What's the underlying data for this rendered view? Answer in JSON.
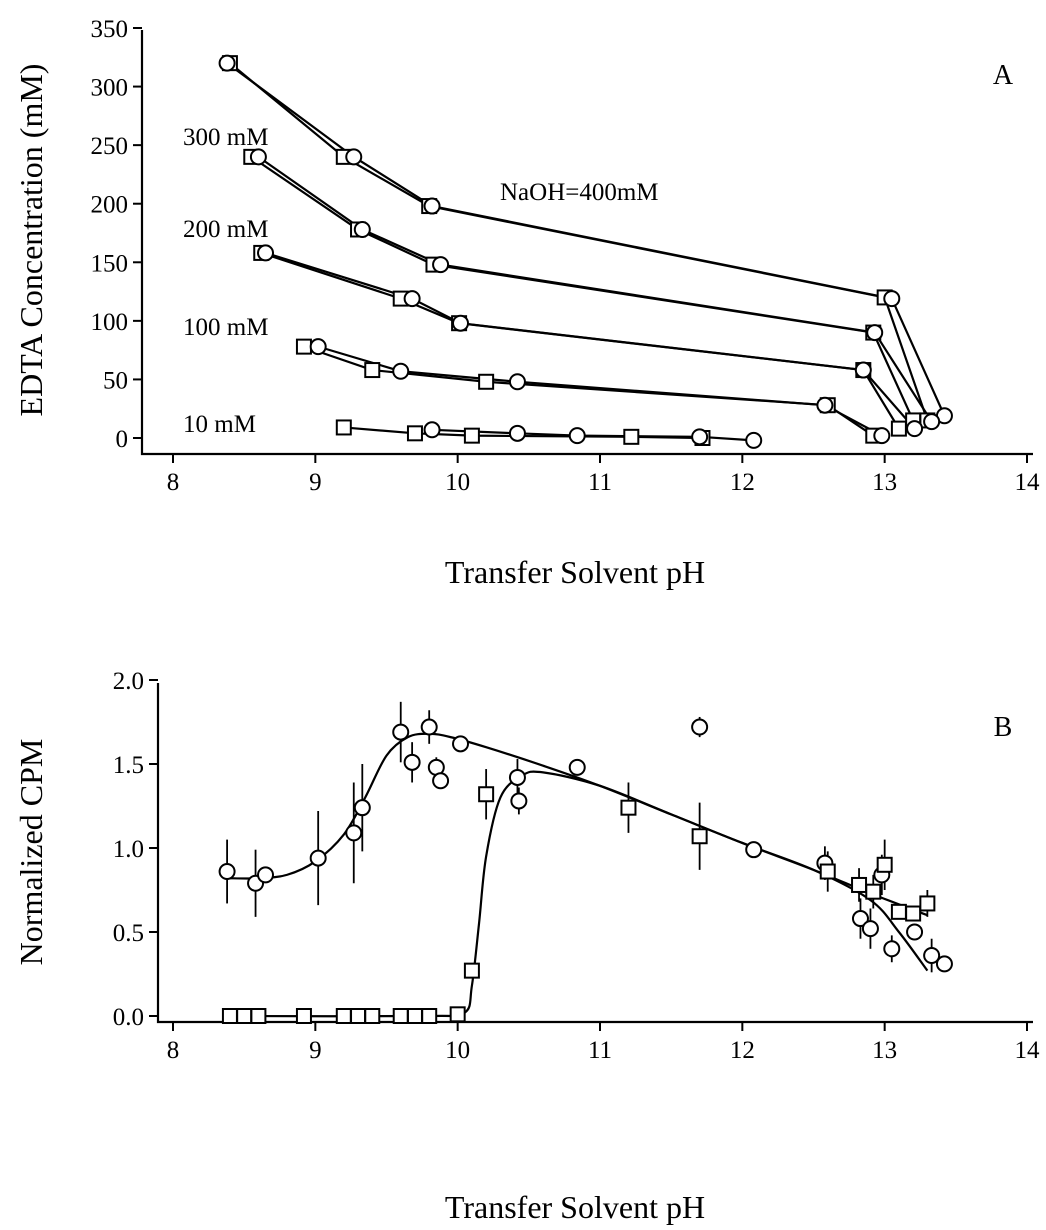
{
  "chart_data": [
    {
      "type": "line",
      "panel": "A",
      "xlabel": "Transfer Solvent pH",
      "ylabel": "EDTA Concentration (mM)",
      "xlim": [
        8,
        14
      ],
      "ylim": [
        0,
        350
      ],
      "xticks": [
        8,
        9,
        10,
        11,
        12,
        13,
        14
      ],
      "yticks": [
        0,
        50,
        100,
        150,
        200,
        250,
        300,
        350
      ],
      "grid": false,
      "annotations": [
        "NaOH=400mM",
        "300 mM",
        "200 mM",
        "100 mM",
        "10 mM"
      ],
      "series": [
        {
          "marker": "square",
          "x": [
            8.4,
            9.2,
            9.8,
            13.0,
            13.3
          ],
          "y": [
            320,
            240,
            198,
            120,
            15
          ]
        },
        {
          "marker": "circle",
          "x": [
            8.38,
            9.27,
            9.82,
            13.05,
            13.42
          ],
          "y": [
            320,
            240,
            198,
            119,
            19
          ]
        },
        {
          "marker": "square",
          "x": [
            8.55,
            9.3,
            9.83,
            12.92,
            13.2
          ],
          "y": [
            240,
            178,
            148,
            90,
            15
          ]
        },
        {
          "marker": "circle",
          "x": [
            8.6,
            9.33,
            9.88,
            12.93,
            13.33
          ],
          "y": [
            240,
            178,
            148,
            90,
            14
          ]
        },
        {
          "marker": "square",
          "x": [
            8.62,
            9.6,
            10.01,
            12.85,
            13.1
          ],
          "y": [
            158,
            119,
            98,
            58,
            8
          ]
        },
        {
          "marker": "circle",
          "x": [
            8.65,
            9.68,
            10.02,
            12.85,
            13.21
          ],
          "y": [
            158,
            119,
            98,
            58,
            8
          ]
        },
        {
          "marker": "square",
          "x": [
            8.92,
            9.4,
            10.2,
            12.6,
            12.92
          ],
          "y": [
            78,
            58,
            48,
            28,
            2
          ]
        },
        {
          "marker": "circle",
          "x": [
            9.02,
            9.6,
            10.42,
            12.58,
            12.98
          ],
          "y": [
            78,
            57,
            48,
            28,
            2
          ]
        },
        {
          "marker": "square",
          "x": [
            9.2,
            9.7,
            10.1,
            11.22,
            11.72
          ],
          "y": [
            9,
            4,
            2,
            1,
            0
          ]
        },
        {
          "marker": "circle",
          "x": [
            9.82,
            10.42,
            10.84,
            11.7,
            12.08
          ],
          "y": [
            7,
            4,
            2,
            1,
            -2
          ]
        }
      ]
    },
    {
      "type": "scatter",
      "panel": "B",
      "xlabel": "Transfer Solvent pH",
      "ylabel": "Normalized CPM",
      "xlim": [
        8,
        14
      ],
      "ylim": [
        0,
        2.0
      ],
      "xticks": [
        8,
        9,
        10,
        11,
        12,
        13,
        14
      ],
      "yticks": [
        "0.0",
        "0.5",
        "1.0",
        "1.5",
        "2.0"
      ],
      "grid": false,
      "series": [
        {
          "marker": "circle",
          "x": [
            8.38,
            8.58,
            8.65,
            9.02,
            9.27,
            9.33,
            9.6,
            9.68,
            9.8,
            9.85,
            9.88,
            10.02,
            10.42,
            10.43,
            10.84,
            11.7,
            12.08,
            12.58,
            12.83,
            12.9,
            12.98,
            13.05,
            13.21,
            13.33,
            13.42
          ],
          "y": [
            0.86,
            0.79,
            0.84,
            0.94,
            1.09,
            1.24,
            1.69,
            1.51,
            1.72,
            1.48,
            1.4,
            1.62,
            1.42,
            1.28,
            1.48,
            1.72,
            0.99,
            0.91,
            0.58,
            0.52,
            0.84,
            0.4,
            0.5,
            0.36,
            0.31
          ],
          "err": [
            0.19,
            0.2,
            0.0,
            0.28,
            0.3,
            0.26,
            0.18,
            0.12,
            0.1,
            0.06,
            0.0,
            0.0,
            0.11,
            0.08,
            0.0,
            0.06,
            0.0,
            0.1,
            0.12,
            0.12,
            0.12,
            0.08,
            0.0,
            0.1,
            0.0
          ],
          "fit_x": [
            8.38,
            8.6,
            8.8,
            9.0,
            9.2,
            9.35,
            9.5,
            9.65,
            9.8,
            9.95,
            10.2,
            10.6,
            11.0,
            11.5,
            12.0,
            12.5,
            12.9,
            13.1,
            13.3
          ],
          "fit_y": [
            0.82,
            0.82,
            0.84,
            0.92,
            1.08,
            1.3,
            1.55,
            1.66,
            1.68,
            1.66,
            1.6,
            1.49,
            1.37,
            1.2,
            1.03,
            0.87,
            0.69,
            0.5,
            0.27
          ]
        },
        {
          "marker": "square",
          "x": [
            8.4,
            8.5,
            8.6,
            8.92,
            9.2,
            9.3,
            9.4,
            9.6,
            9.7,
            9.8,
            10.0,
            10.1,
            10.2,
            11.2,
            11.7,
            12.6,
            12.82,
            12.92,
            13.0,
            13.1,
            13.2,
            13.3
          ],
          "y": [
            0.0,
            0.0,
            0.0,
            0.0,
            0.0,
            0.0,
            0.0,
            0.0,
            0.0,
            0.0,
            0.01,
            0.27,
            1.32,
            1.24,
            1.07,
            0.86,
            0.78,
            0.74,
            0.9,
            0.62,
            0.61,
            0.67
          ],
          "err": [
            0,
            0,
            0,
            0,
            0,
            0,
            0,
            0,
            0,
            0,
            0,
            0,
            0.15,
            0.15,
            0.2,
            0.12,
            0.1,
            0.1,
            0.15,
            0.0,
            0.0,
            0.08
          ],
          "fit_x": [
            8.4,
            9.8,
            10.05,
            10.1,
            10.15,
            10.2,
            10.3,
            10.45,
            10.6,
            11.0,
            11.5,
            12.0,
            12.5,
            12.9,
            13.3
          ],
          "fit_y": [
            0.0,
            0.0,
            0.02,
            0.18,
            0.55,
            0.95,
            1.3,
            1.43,
            1.45,
            1.37,
            1.2,
            1.03,
            0.87,
            0.73,
            0.6
          ]
        }
      ]
    }
  ]
}
